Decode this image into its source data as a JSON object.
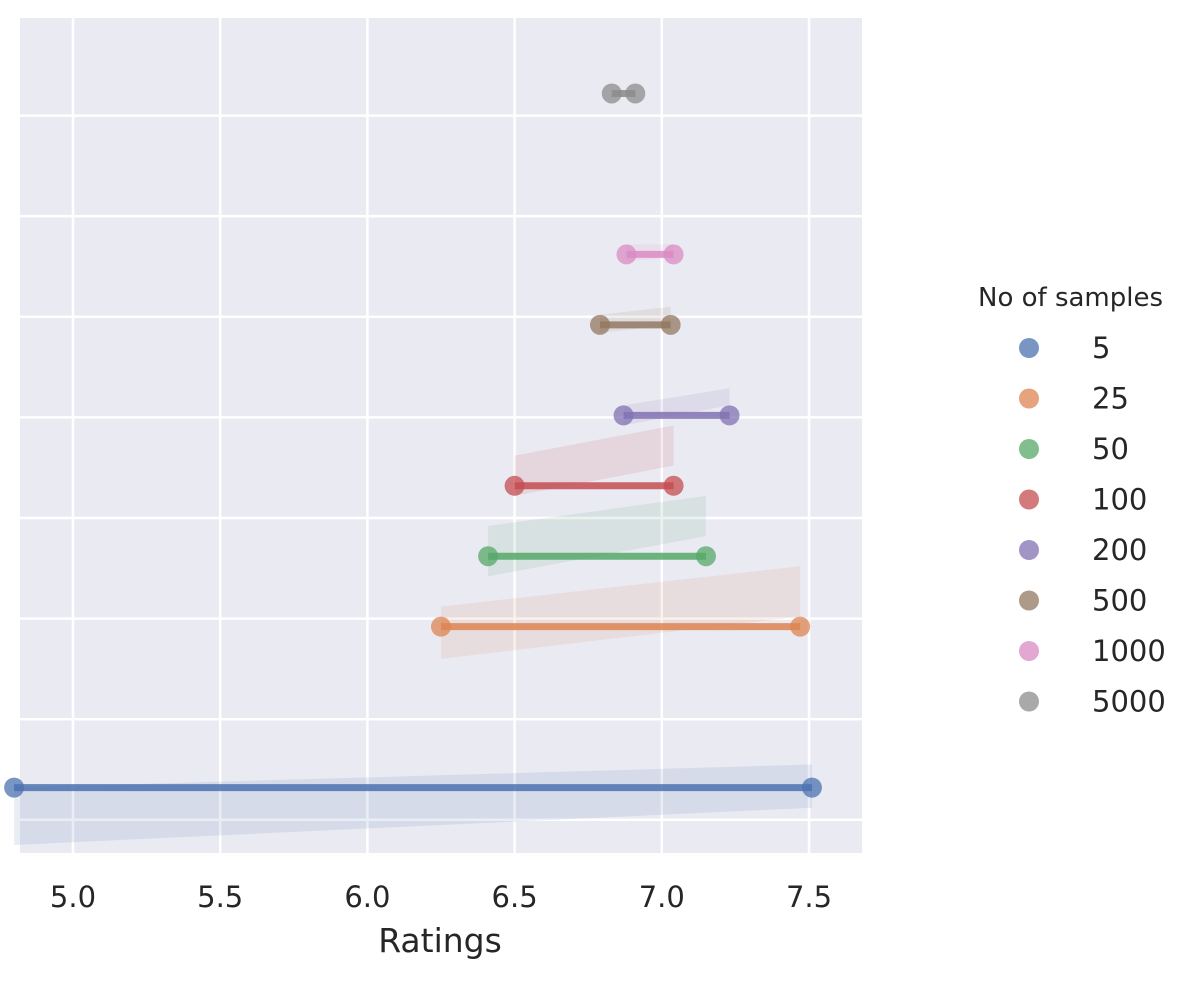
{
  "chart_data": {
    "type": "dumbbell",
    "xlabel": "Ratings",
    "ylabel": "",
    "xlim": [
      4.82,
      7.68
    ],
    "xticks": [
      "5.0",
      "5.5",
      "6.0",
      "6.5",
      "7.0",
      "7.5"
    ],
    "xtick_values": [
      5.0,
      5.5,
      6.0,
      6.5,
      7.0,
      7.5
    ],
    "grid": true,
    "legend": {
      "title": "No of samples",
      "placement": "right",
      "entries": [
        "5",
        "25",
        "50",
        "100",
        "200",
        "500",
        "1000",
        "5000"
      ]
    },
    "series": [
      {
        "name": "5",
        "color": "#4c72b0",
        "min": 4.8,
        "max": 7.51,
        "y": 0.65,
        "band_left": [
          0.08,
          0.65
        ],
        "band_right": [
          0.45,
          0.88
        ]
      },
      {
        "name": "25",
        "color": "#dd8452",
        "min": 6.25,
        "max": 7.47,
        "y": 2.25,
        "band_left": [
          1.93,
          2.45
        ],
        "band_right": [
          2.35,
          2.85
        ]
      },
      {
        "name": "50",
        "color": "#55a868",
        "min": 6.41,
        "max": 7.15,
        "y": 2.95,
        "band_left": [
          2.75,
          3.25
        ],
        "band_right": [
          3.15,
          3.55
        ]
      },
      {
        "name": "100",
        "color": "#c44e52",
        "min": 6.5,
        "max": 7.04,
        "y": 3.65,
        "band_left": [
          3.55,
          3.95
        ],
        "band_right": [
          3.85,
          4.25
        ]
      },
      {
        "name": "200",
        "color": "#8172b3",
        "min": 6.87,
        "max": 7.23,
        "y": 4.35,
        "band_left": [
          4.25,
          4.45
        ],
        "band_right": [
          4.45,
          4.62
        ]
      },
      {
        "name": "500",
        "color": "#937860",
        "min": 6.79,
        "max": 7.03,
        "y": 5.25,
        "band_left": [
          5.17,
          5.35
        ],
        "band_right": [
          5.25,
          5.43
        ]
      },
      {
        "name": "1000",
        "color": "#da8bc3",
        "min": 6.88,
        "max": 7.04,
        "y": 5.95,
        "band_left": [
          5.88,
          6.05
        ],
        "band_right": [
          5.92,
          6.05
        ]
      },
      {
        "name": "5000",
        "color": "#8c8c8c",
        "min": 6.83,
        "max": 6.91,
        "y": 7.55,
        "band_left": [
          7.52,
          7.58
        ],
        "band_right": [
          7.52,
          7.58
        ]
      }
    ]
  }
}
